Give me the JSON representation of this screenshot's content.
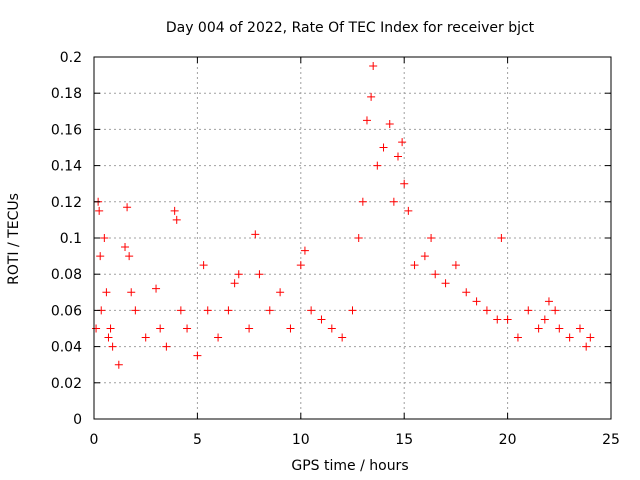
{
  "chart_data": {
    "type": "scatter",
    "title": "Day 004 of 2022, Rate Of TEC Index for receiver bjct",
    "xlabel": "GPS time / hours",
    "ylabel": "ROTI / TECUs",
    "xlim": [
      0,
      25
    ],
    "ylim": [
      0,
      0.2
    ],
    "x_ticks": [
      "0",
      "5",
      "10",
      "15",
      "20",
      "25"
    ],
    "y_ticks": [
      "0",
      "0.02",
      "0.04",
      "0.06",
      "0.08",
      "0.1",
      "0.12",
      "0.14",
      "0.16",
      "0.18",
      "0.2"
    ],
    "grid": true,
    "legend": "none",
    "marker": "plus",
    "color": "#ff0000",
    "series": [
      {
        "x": [
          0.1,
          0.2,
          0.25,
          0.3,
          0.35,
          0.5,
          0.6,
          0.7,
          0.8,
          0.9,
          1.2,
          1.5,
          1.6,
          1.7,
          1.8,
          2.0,
          2.5,
          3.0,
          3.2,
          3.5,
          3.9,
          4.0,
          4.2,
          4.5,
          5.0,
          5.3,
          5.5,
          6.0,
          6.5,
          6.8,
          7.0,
          7.5,
          7.8,
          8.0,
          8.5,
          9.0,
          9.5,
          10.0,
          10.2,
          10.5,
          11.0,
          11.5,
          12.0,
          12.5,
          12.8,
          13.0,
          13.2,
          13.4,
          13.5,
          13.7,
          14.0,
          14.3,
          14.5,
          14.7,
          14.9,
          15.0,
          15.2,
          15.5,
          16.0,
          16.3,
          16.5,
          17.0,
          17.5,
          18.0,
          18.5,
          19.0,
          19.5,
          19.7,
          20.0,
          20.5,
          21.0,
          21.5,
          21.8,
          22.0,
          22.3,
          22.5,
          23.0,
          23.5,
          23.8,
          24.0
        ],
        "y": [
          0.05,
          0.12,
          0.115,
          0.09,
          0.06,
          0.1,
          0.07,
          0.045,
          0.05,
          0.04,
          0.03,
          0.095,
          0.117,
          0.09,
          0.07,
          0.06,
          0.045,
          0.072,
          0.05,
          0.04,
          0.115,
          0.11,
          0.06,
          0.05,
          0.035,
          0.085,
          0.06,
          0.045,
          0.06,
          0.075,
          0.08,
          0.05,
          0.102,
          0.08,
          0.06,
          0.07,
          0.05,
          0.085,
          0.093,
          0.06,
          0.055,
          0.05,
          0.045,
          0.06,
          0.1,
          0.12,
          0.165,
          0.178,
          0.195,
          0.14,
          0.15,
          0.163,
          0.12,
          0.145,
          0.153,
          0.13,
          0.115,
          0.085,
          0.09,
          0.1,
          0.08,
          0.075,
          0.085,
          0.07,
          0.065,
          0.06,
          0.055,
          0.1,
          0.055,
          0.045,
          0.06,
          0.05,
          0.055,
          0.065,
          0.06,
          0.05,
          0.045,
          0.05,
          0.04,
          0.045
        ]
      }
    ]
  }
}
